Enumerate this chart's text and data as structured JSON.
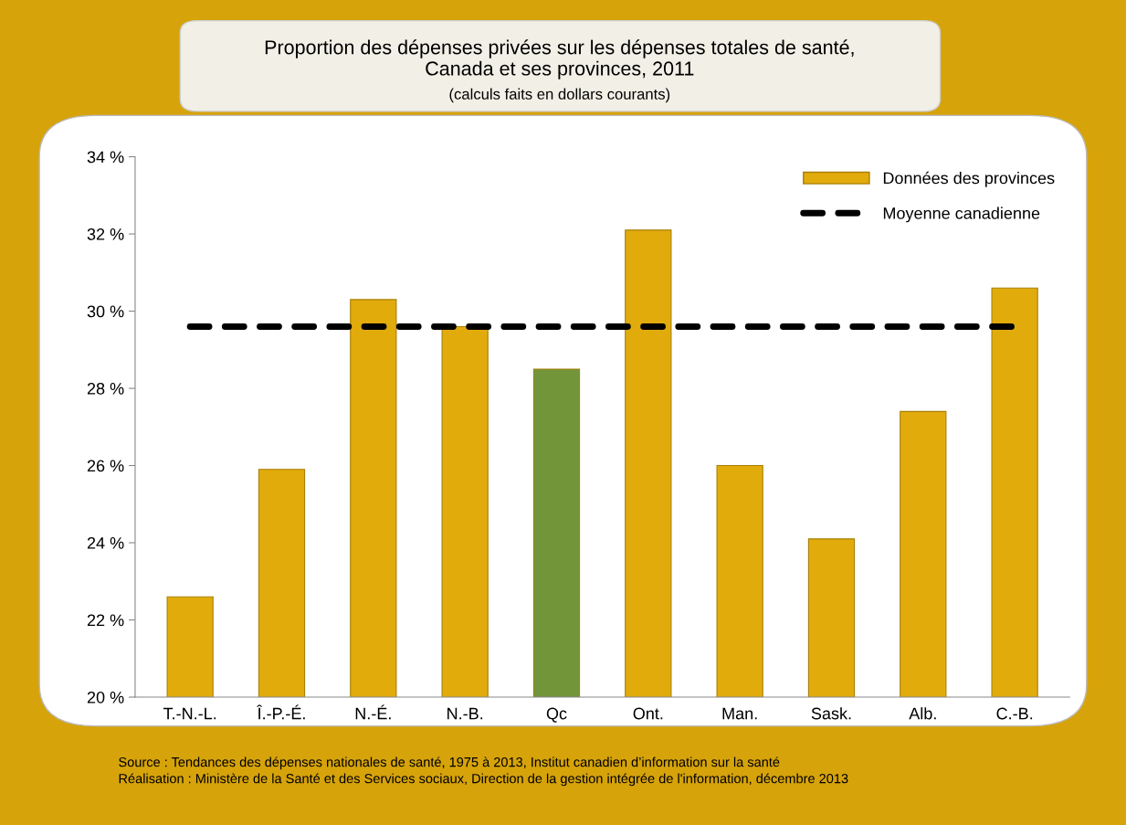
{
  "chart_data": {
    "type": "bar",
    "title": "Proportion des dépenses privées sur les dépenses totales de santé,\nCanada et ses provinces, 2011",
    "subtitle": "(calculs faits en dollars courants)",
    "categories": [
      "T.-N.-L.",
      "Î.-P.-É.",
      "N.-É.",
      "N.-B.",
      "Qc",
      "Ont.",
      "Man.",
      "Sask.",
      "Alb.",
      "C.-B."
    ],
    "series": [
      {
        "name": "Données des provinces",
        "color": "#e2ab0c",
        "colors": [
          "#e2ab0c",
          "#e2ab0c",
          "#e2ab0c",
          "#e2ab0c",
          "#72953a",
          "#e2ab0c",
          "#e2ab0c",
          "#e2ab0c",
          "#e2ab0c",
          "#e2ab0c"
        ],
        "values": [
          22.6,
          25.9,
          30.3,
          29.6,
          28.5,
          32.1,
          26.0,
          24.1,
          27.4,
          30.6
        ]
      },
      {
        "name": "Moyenne canadienne",
        "type": "line",
        "color": "#000000",
        "line_style": "dashed",
        "values": [
          29.6,
          29.6,
          29.6,
          29.6,
          29.6,
          29.6,
          29.6,
          29.6,
          29.6,
          29.6
        ]
      }
    ],
    "ylim": [
      20,
      34
    ],
    "yticks": [
      {
        "value": 20,
        "label": "20 %"
      },
      {
        "value": 22,
        "label": "22 %"
      },
      {
        "value": 24,
        "label": "24 %"
      },
      {
        "value": 26,
        "label": "26 %"
      },
      {
        "value": 28,
        "label": "28 %"
      },
      {
        "value": 30,
        "label": "30 %"
      },
      {
        "value": 32,
        "label": "32 %"
      },
      {
        "value": 34,
        "label": "34 %"
      }
    ],
    "grid": false,
    "legend": "top right",
    "annotations": [
      "Source : Tendances des dépenses nationales de santé, 1975 à 2013, Institut canadien d’information sur la santé",
      "Réalisation : Ministère de la Santé et des Services sociaux, Direction de la gestion intégrée de l'information, décembre 2013"
    ]
  }
}
